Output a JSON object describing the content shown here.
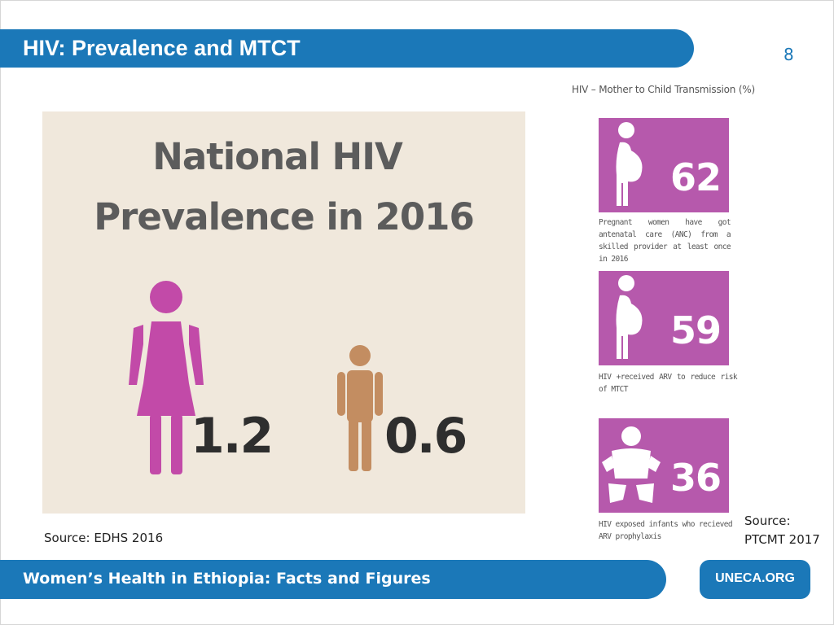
{
  "header": {
    "title": "HIV: Prevalence and MTCT",
    "page_number": "8"
  },
  "national": {
    "title_line1": "National HIV",
    "title_line2": "Prevalence in 2016",
    "female": {
      "value": "1.2",
      "color": "#c24aa8",
      "icon": "woman-icon"
    },
    "male": {
      "value": "0.6",
      "color": "#c38d61",
      "icon": "man-icon"
    },
    "source": "Source: EDHS 2016",
    "panel_color": "#f0e8dc"
  },
  "mtct": {
    "heading": "HIV – Mother to Child Transmission (%)",
    "tile_color": "#b659ac",
    "items": [
      {
        "value": "62",
        "icon": "pregnant-woman-icon",
        "description": "Pregnant women have got antenatal care (ANC) from a skilled provider at least once in 2016"
      },
      {
        "value": "59",
        "icon": "pregnant-woman-icon",
        "description": "HIV +received ARV to reduce risk of MTCT"
      },
      {
        "value": "36",
        "icon": "infant-icon",
        "description": "HIV exposed infants who recieved ARV prophylaxis"
      }
    ],
    "source_line1": "Source:",
    "source_line2": "PTCMT 2017"
  },
  "footer": {
    "text": "Women’s Health in Ethiopia: Facts and Figures",
    "link_label": "UNECA.ORG",
    "accent_color": "#1b78b8"
  }
}
